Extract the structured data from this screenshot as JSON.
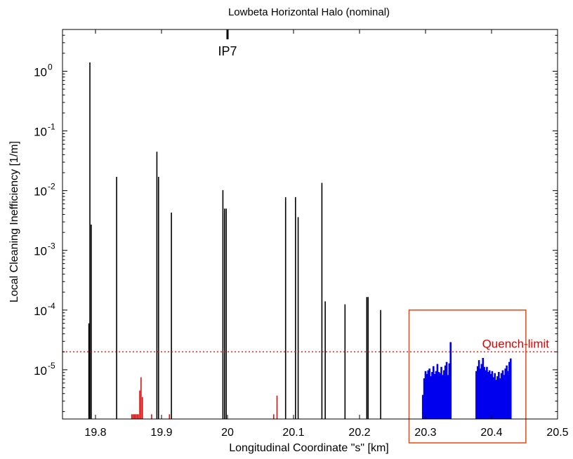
{
  "chart_data": {
    "type": "bar",
    "title": "Lowbeta Horizontal Halo (nominal)",
    "xlabel": "Longitudinal Coordinate \"s\" [km]",
    "ylabel": "Local Cleaning Inefficiency [1/m]",
    "xlim": [
      19.75,
      20.5
    ],
    "ylim": [
      1.5e-06,
      5
    ],
    "yscale": "log",
    "grid": false,
    "x_ticks": [
      {
        "value": 19.8,
        "label": "19.8"
      },
      {
        "value": 19.9,
        "label": "19.9"
      },
      {
        "value": 20.0,
        "label": "20"
      },
      {
        "value": 20.1,
        "label": "20.1"
      },
      {
        "value": 20.2,
        "label": "20.2"
      },
      {
        "value": 20.3,
        "label": "20.3"
      },
      {
        "value": 20.4,
        "label": "20.4"
      },
      {
        "value": 20.5,
        "label": "20.5"
      }
    ],
    "y_ticks": [
      {
        "value": 1e-05,
        "base": "10",
        "exp": "-5"
      },
      {
        "value": 0.0001,
        "base": "10",
        "exp": "-4"
      },
      {
        "value": 0.001,
        "base": "10",
        "exp": "-3"
      },
      {
        "value": 0.01,
        "base": "10",
        "exp": "-2"
      },
      {
        "value": 0.1,
        "base": "10",
        "exp": "-1"
      },
      {
        "value": 1,
        "base": "10",
        "exp": "0"
      }
    ],
    "annotations": {
      "marker_label": "IP7",
      "marker_x": 20.0,
      "quench_label": "Quench-limit",
      "quench_value": 2e-05,
      "box_xrange": [
        20.275,
        20.452
      ],
      "box_yrange": [
        1.5e-06,
        0.0001
      ]
    },
    "colors": {
      "collimator": "#000000",
      "warm": "#dd0000",
      "cold": "#0000ee",
      "quench_line": "#dd0000",
      "box": "#ee4411"
    },
    "series": [
      {
        "kind": "collimator",
        "x": [
          19.79,
          19.7915,
          19.7935,
          19.832,
          19.893,
          19.8955,
          19.915,
          19.993,
          19.9955,
          19.998,
          20.088,
          20.103,
          20.107,
          20.143,
          20.148,
          20.178,
          20.211,
          20.213,
          20.232
        ],
        "values": [
          6e-05,
          1.4,
          0.0027,
          0.017,
          0.045,
          0.017,
          0.0043,
          0.0102,
          0.005,
          0.005,
          0.0078,
          0.0078,
          0.0036,
          0.0135,
          0.00014,
          0.000125,
          0.000165,
          0.000165,
          0.0001
        ]
      },
      {
        "kind": "warm",
        "x": [
          19.855,
          19.857,
          19.859,
          19.861,
          19.863,
          19.865,
          19.867,
          19.869,
          19.871,
          19.885,
          19.912,
          20.07,
          20.075
        ],
        "values": [
          1.8e-06,
          1.8e-06,
          1.8e-06,
          1.8e-06,
          1.8e-06,
          1.8e-06,
          4.5e-06,
          7.5e-06,
          3.5e-06,
          1.8e-06,
          1.8e-06,
          1.8e-06,
          3.7e-06
        ]
      },
      {
        "kind": "cold",
        "x": [
          20.296,
          20.298,
          20.3,
          20.302,
          20.304,
          20.306,
          20.308,
          20.31,
          20.312,
          20.314,
          20.316,
          20.318,
          20.32,
          20.322,
          20.324,
          20.326,
          20.328,
          20.33,
          20.332,
          20.334,
          20.336,
          20.338,
          20.377,
          20.379,
          20.381,
          20.383,
          20.385,
          20.387,
          20.389,
          20.391,
          20.393,
          20.395,
          20.397,
          20.399,
          20.401,
          20.403,
          20.405,
          20.407,
          20.409,
          20.411,
          20.413,
          20.415,
          20.417,
          20.419,
          20.421,
          20.423,
          20.425,
          20.427,
          20.429
        ],
        "values": [
          3.8e-06,
          7.2e-06,
          9.5e-06,
          8.5e-06,
          9.8e-06,
          1.05e-05,
          7.8e-06,
          9.2e-06,
          1.15e-05,
          8.5e-06,
          9.5e-06,
          1.25e-05,
          9.2e-06,
          8.8e-06,
          1.12e-05,
          8.2e-06,
          9.8e-06,
          1.18e-05,
          1.35e-05,
          8.2e-06,
          1.28e-05,
          2.9e-05,
          9.5e-06,
          1.15e-05,
          1.45e-05,
          1.05e-05,
          1.25e-05,
          1.58e-05,
          1.12e-05,
          9.8e-06,
          1.12e-05,
          9.2e-06,
          9.8e-06,
          8.5e-06,
          9.5e-06,
          7.5e-06,
          8.8e-06,
          6.8e-06,
          7.8e-06,
          9.2e-06,
          7.2e-06,
          8.8e-06,
          9.8e-06,
          8.2e-06,
          1.05e-05,
          1.18e-05,
          9.5e-06,
          1.35e-05,
          1.55e-05
        ]
      }
    ]
  }
}
